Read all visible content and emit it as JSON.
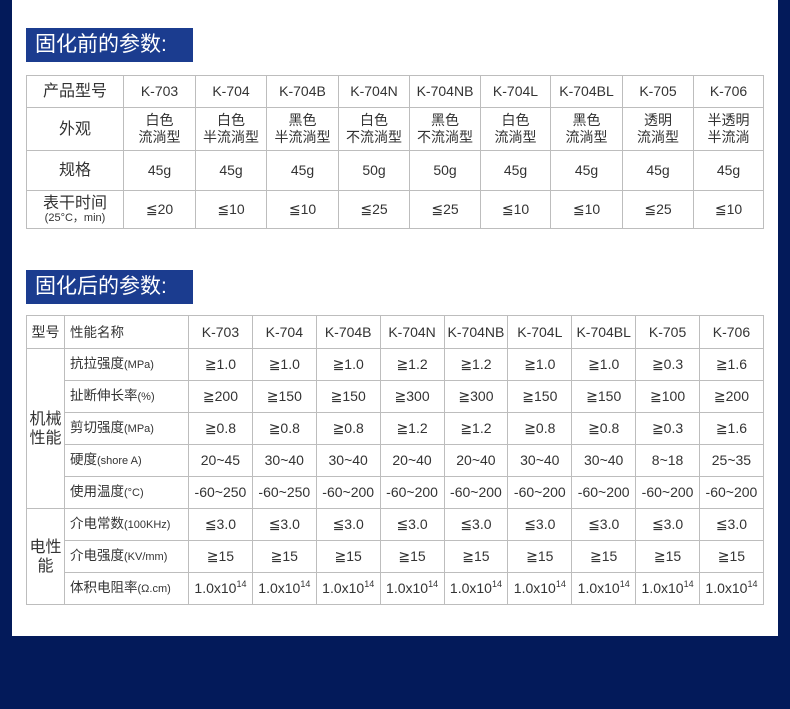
{
  "colors": {
    "background": "#031a5a",
    "title_bg": "#1b3c8f",
    "border": "#bdbdbd"
  },
  "before": {
    "title": "固化前的参数:",
    "header_label": "产品型号",
    "models": [
      "K-703",
      "K-704",
      "K-704B",
      "K-704N",
      "K-704NB",
      "K-704L",
      "K-704BL",
      "K-705",
      "K-706"
    ],
    "rows": [
      {
        "label": "外观",
        "values": [
          [
            "白色",
            "流淌型"
          ],
          [
            "白色",
            "半流淌型"
          ],
          [
            "黑色",
            "半流淌型"
          ],
          [
            "白色",
            "不流淌型"
          ],
          [
            "黑色",
            "不流淌型"
          ],
          [
            "白色",
            "流淌型"
          ],
          [
            "黑色",
            "流淌型"
          ],
          [
            "透明",
            "流淌型"
          ],
          [
            "半透明",
            "半流淌"
          ]
        ]
      },
      {
        "label": "规格",
        "values": [
          "45g",
          "45g",
          "45g",
          "50g",
          "50g",
          "45g",
          "45g",
          "45g",
          "45g"
        ]
      },
      {
        "label": "表干时间",
        "sublabel": "(25°C，min)",
        "values": [
          "≦20",
          "≦10",
          "≦10",
          "≦25",
          "≦25",
          "≦10",
          "≦10",
          "≦25",
          "≦10"
        ]
      }
    ]
  },
  "after": {
    "title": "固化后的参数:",
    "header_type": "型号",
    "header_name": "性能名称",
    "models": [
      "K-703",
      "K-704",
      "K-704B",
      "K-704N",
      "K-704NB",
      "K-704L",
      "K-704BL",
      "K-705",
      "K-706"
    ],
    "groups": [
      {
        "label": "机械性能",
        "rows": [
          {
            "name": "抗拉强度",
            "unit": "(MPa)",
            "values": [
              "≧1.0",
              "≧1.0",
              "≧1.0",
              "≧1.2",
              "≧1.2",
              "≧1.0",
              "≧1.0",
              "≧0.3",
              "≧1.6"
            ]
          },
          {
            "name": "扯断伸长率",
            "unit": "(%)",
            "values": [
              "≧200",
              "≧150",
              "≧150",
              "≧300",
              "≧300",
              "≧150",
              "≧150",
              "≧100",
              "≧200"
            ]
          },
          {
            "name": "剪切强度",
            "unit": "(MPa)",
            "values": [
              "≧0.8",
              "≧0.8",
              "≧0.8",
              "≧1.2",
              "≧1.2",
              "≧0.8",
              "≧0.8",
              "≧0.3",
              "≧1.6"
            ]
          },
          {
            "name": "硬度",
            "unit": "(shore A)",
            "values": [
              "20~45",
              "30~40",
              "30~40",
              "20~40",
              "20~40",
              "30~40",
              "30~40",
              "8~18",
              "25~35"
            ]
          },
          {
            "name": "使用温度",
            "unit": "(°C)",
            "values": [
              "-60~250",
              "-60~250",
              "-60~200",
              "-60~200",
              "-60~200",
              "-60~200",
              "-60~200",
              "-60~200",
              "-60~200"
            ]
          }
        ]
      },
      {
        "label": "电性能",
        "rows": [
          {
            "name": "介电常数",
            "unit": "(100KHz)",
            "values": [
              "≦3.0",
              "≦3.0",
              "≦3.0",
              "≦3.0",
              "≦3.0",
              "≦3.0",
              "≦3.0",
              "≦3.0",
              "≦3.0"
            ]
          },
          {
            "name": "介电强度",
            "unit": "(KV/mm)",
            "values": [
              "≧15",
              "≧15",
              "≧15",
              "≧15",
              "≧15",
              "≧15",
              "≧15",
              "≧15",
              "≧15"
            ]
          },
          {
            "name": "体积电阻率",
            "unit": "(Ω.cm)",
            "values": [
              "1.0x10^14",
              "1.0x10^14",
              "1.0x10^14",
              "1.0x10^14",
              "1.0x10^14",
              "1.0x10^14",
              "1.0x10^14",
              "1.0x10^14",
              "1.0x10^14"
            ]
          }
        ]
      }
    ]
  }
}
